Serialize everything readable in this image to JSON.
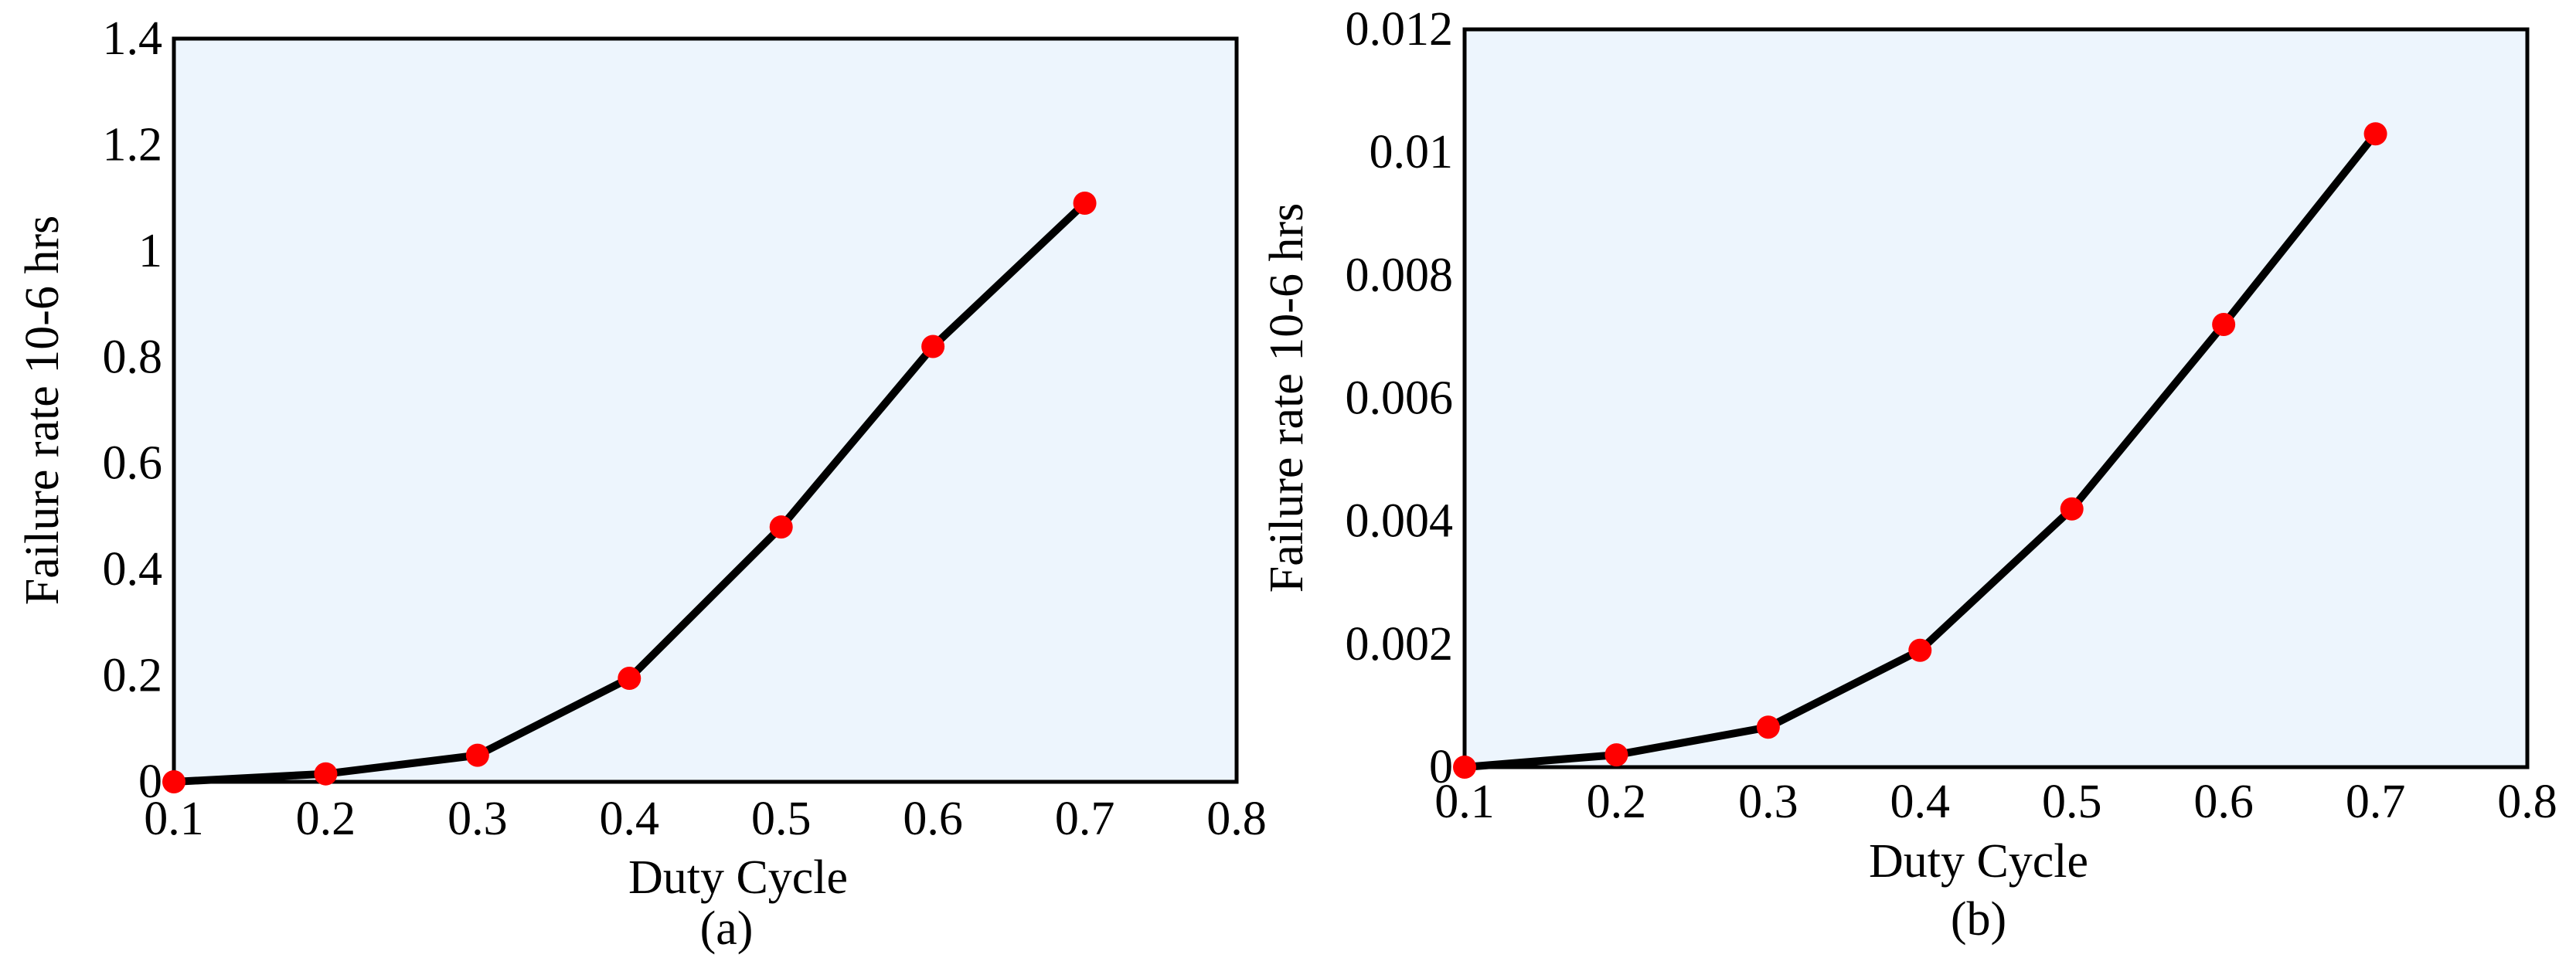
{
  "colors": {
    "plot_background": "#edf5fd",
    "line": "#000000",
    "marker": "#ff0000",
    "frame": "#000000"
  },
  "chart_data": [
    {
      "type": "line",
      "caption": "(a)",
      "xlabel": "Duty Cycle",
      "ylabel": "Failure rate 10-6 hrs",
      "xlim": [
        0.1,
        0.8
      ],
      "ylim": [
        0,
        1.4
      ],
      "xticks": [
        "0.1",
        "0.2",
        "0.3",
        "0.4",
        "0.5",
        "0.6",
        "0.7",
        "0.8"
      ],
      "yticks": [
        "0",
        "0.2",
        "0.4",
        "0.6",
        "0.8",
        "1",
        "1.2",
        "1.4"
      ],
      "grid": false,
      "series": [
        {
          "x": [
            0.1,
            0.2,
            0.3,
            0.4,
            0.5,
            0.6,
            0.7
          ],
          "y": [
            0.0,
            0.015,
            0.05,
            0.195,
            0.48,
            0.82,
            1.09
          ]
        }
      ]
    },
    {
      "type": "line",
      "caption": "(b)",
      "xlabel": "Duty Cycle",
      "ylabel": "Failure rate 10-6 hrs",
      "xlim": [
        0.1,
        0.8
      ],
      "ylim": [
        0,
        0.012
      ],
      "xticks": [
        "0.1",
        "0.2",
        "0.3",
        "0.4",
        "0.5",
        "0.6",
        "0.7",
        "0.8"
      ],
      "yticks": [
        "0",
        "0.002",
        "0.004",
        "0.006",
        "0.008",
        "0.01",
        "0.012"
      ],
      "grid": false,
      "series": [
        {
          "x": [
            0.1,
            0.2,
            0.3,
            0.4,
            0.5,
            0.6,
            0.7
          ],
          "y": [
            0.0,
            0.0002,
            0.00065,
            0.0019,
            0.0042,
            0.0072,
            0.0103
          ]
        }
      ]
    }
  ]
}
